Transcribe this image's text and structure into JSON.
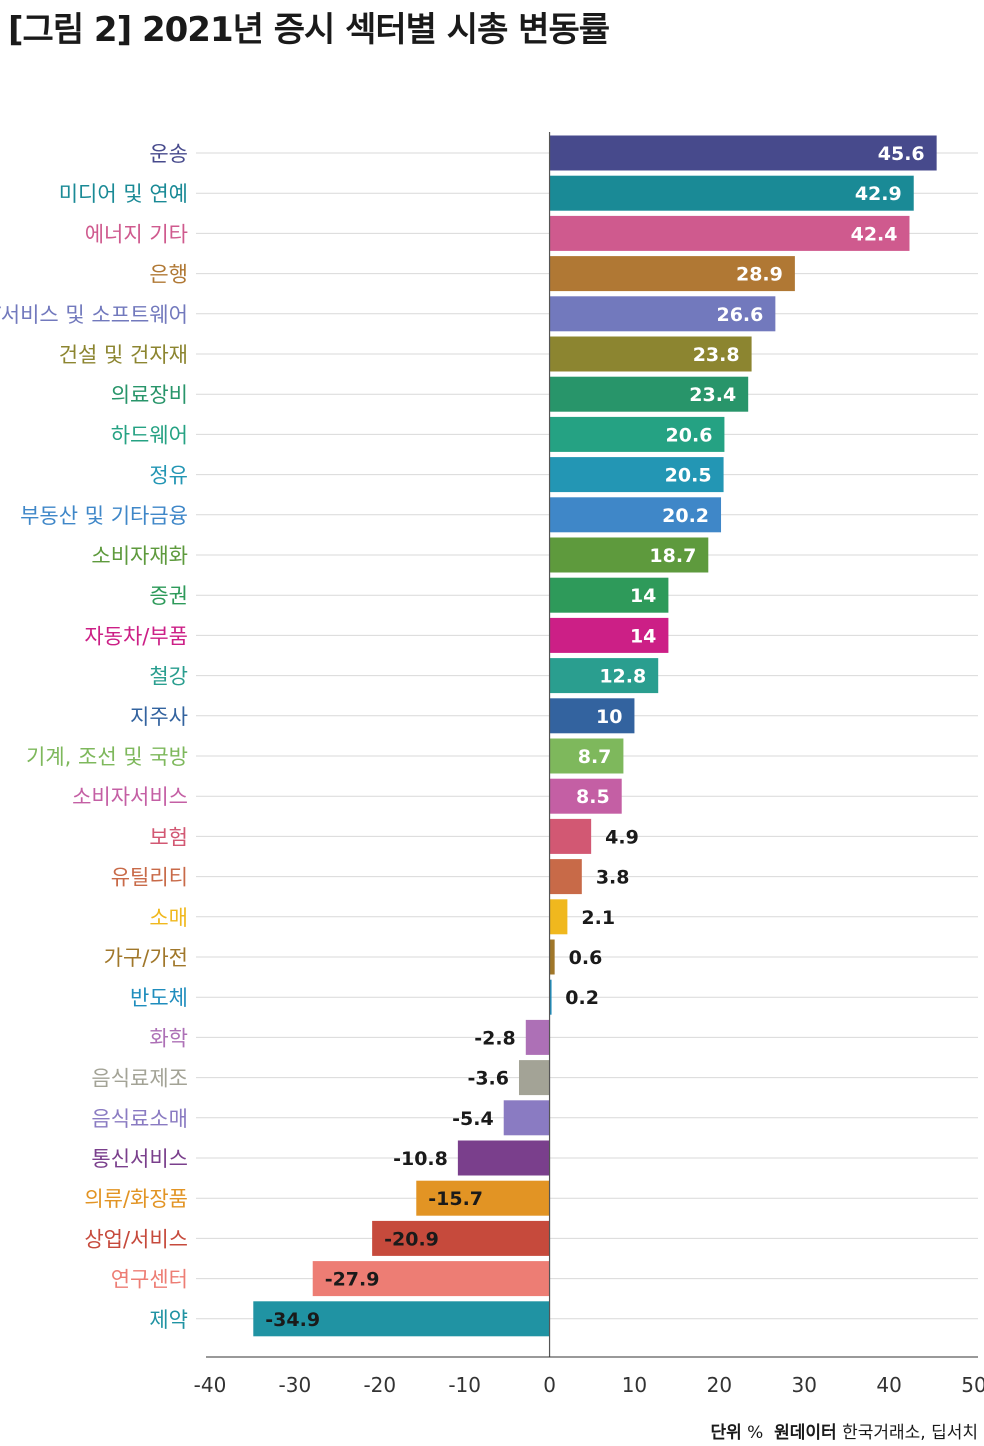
{
  "title": "[그림 2] 2021년 증시 섹터별 시총 변동률",
  "footer": {
    "unit_label": "단위",
    "unit_value": "%",
    "source_label": "원데이터",
    "source_value": "한국거래소, 딥서치"
  },
  "chart_data": {
    "type": "bar",
    "orientation": "horizontal",
    "title": "[그림 2] 2021년 증시 섹터별 시총 변동률",
    "xlabel": "",
    "ylabel": "",
    "xlim": [
      -40,
      50
    ],
    "xticks": [
      -40,
      -30,
      -20,
      -10,
      0,
      10,
      20,
      30,
      40,
      50
    ],
    "grid": true,
    "categories": [
      "운송",
      "미디어 및 연예",
      "에너지 기타",
      "은행",
      "IT서비스 및 소프트웨어",
      "건설 및 건자재",
      "의료장비",
      "하드웨어",
      "정유",
      "부동산 및 기타금융",
      "소비자재화",
      "증권",
      "자동차/부품",
      "철강",
      "지주사",
      "기계, 조선 및 국방",
      "소비자서비스",
      "보험",
      "유틸리티",
      "소매",
      "가구/가전",
      "반도체",
      "화학",
      "음식료제조",
      "음식료소매",
      "통신서비스",
      "의류/화장품",
      "상업/서비스",
      "연구센터",
      "제약"
    ],
    "values": [
      45.6,
      42.9,
      42.4,
      28.9,
      26.6,
      23.8,
      23.4,
      20.6,
      20.5,
      20.2,
      18.7,
      14,
      14,
      12.8,
      10,
      8.7,
      8.5,
      4.9,
      3.8,
      2.1,
      0.6,
      0.2,
      -2.8,
      -3.6,
      -5.4,
      -10.8,
      -15.7,
      -20.9,
      -27.9,
      -34.9
    ],
    "colors": [
      "#474a8c",
      "#1a8a96",
      "#cf5a8e",
      "#b07834",
      "#7279bd",
      "#8c8530",
      "#28956a",
      "#25a283",
      "#2396b4",
      "#3f87c8",
      "#5e9a3d",
      "#2e9a5a",
      "#cc1f86",
      "#2a9e8f",
      "#33639f",
      "#7eb85c",
      "#c45fa4",
      "#d25873",
      "#c86a48",
      "#f0b81e",
      "#a0772a",
      "#1f8dbd",
      "#ad70b6",
      "#a3a396",
      "#8a7bc2",
      "#7a3f8c",
      "#e29424",
      "#c64a3c",
      "#ed7d74",
      "#2093a3"
    ]
  }
}
